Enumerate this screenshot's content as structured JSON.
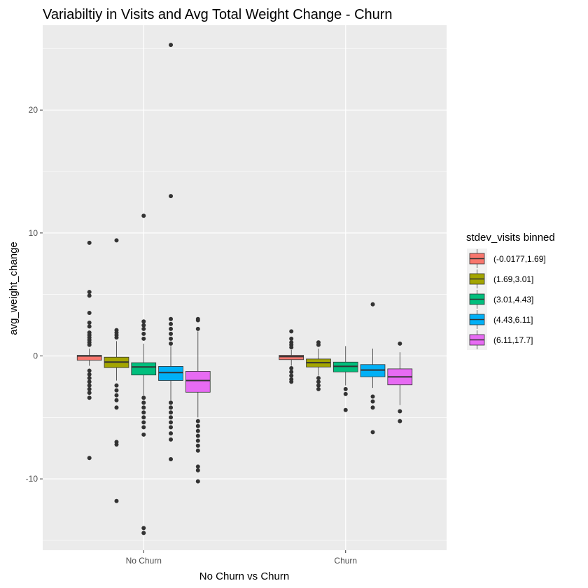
{
  "chart_data": {
    "type": "boxplot",
    "title": "Variabiltiy in Visits and Avg Total Weight Change - Churn",
    "xlabel": "No Churn vs Churn",
    "ylabel": "avg_weight_change",
    "categories": [
      "No Churn",
      "Churn"
    ],
    "ylim": [
      -15.8,
      26.9
    ],
    "yticks": [
      -10,
      0,
      10,
      20
    ],
    "ytick_labels": [
      "-10",
      "0",
      "10",
      "20"
    ],
    "grid": true,
    "legend_title": "stdev_visits binned",
    "legend_position": "right",
    "series": [
      {
        "name": "(-0.0177,1.69]",
        "color": "#F8766D",
        "boxes": [
          {
            "category": "No Churn",
            "whisker_low": -0.8,
            "q1": -0.35,
            "median": 0.0,
            "q3": 0.05,
            "whisker_high": 0.6,
            "outliers": [
              9.2,
              5.2,
              4.9,
              3.5,
              2.7,
              2.4,
              1.9,
              1.7,
              1.5,
              1.3,
              1.1,
              0.9,
              -1.2,
              -1.5,
              -1.8,
              -2.1,
              -2.4,
              -2.7,
              -3.0,
              -3.4,
              -8.3
            ]
          },
          {
            "category": "Churn",
            "whisker_low": -0.8,
            "q1": -0.3,
            "median": -0.05,
            "q3": 0.05,
            "whisker_high": 0.5,
            "outliers": [
              2.0,
              1.4,
              1.1,
              0.9,
              0.7,
              -1.0,
              -1.3,
              -1.6,
              -1.9,
              -2.1
            ]
          }
        ]
      },
      {
        "name": "(1.69,3.01]",
        "color": "#A3A500",
        "boxes": [
          {
            "category": "No Churn",
            "whisker_low": -2.0,
            "q1": -0.95,
            "median": -0.5,
            "q3": -0.1,
            "whisker_high": 1.2,
            "outliers": [
              9.4,
              2.1,
              1.9,
              1.7,
              1.5,
              -2.4,
              -2.8,
              -3.2,
              -3.6,
              -4.2,
              -7.0,
              -7.2,
              -11.8
            ]
          },
          {
            "category": "Churn",
            "whisker_low": -1.6,
            "q1": -0.9,
            "median": -0.55,
            "q3": -0.25,
            "whisker_high": 0.6,
            "outliers": [
              1.1,
              0.9,
              -1.8,
              -2.1,
              -2.4,
              -2.7
            ]
          }
        ]
      },
      {
        "name": "(3.01,4.43]",
        "color": "#00BF7D",
        "boxes": [
          {
            "category": "No Churn",
            "whisker_low": -3.2,
            "q1": -1.55,
            "median": -0.9,
            "q3": -0.55,
            "whisker_high": 1.0,
            "outliers": [
              11.4,
              2.8,
              2.5,
              2.2,
              1.8,
              1.4,
              -3.4,
              -3.8,
              -4.2,
              -4.6,
              -5.0,
              -5.4,
              -5.8,
              -6.4,
              -14.0,
              -14.4
            ]
          },
          {
            "category": "Churn",
            "whisker_low": -2.4,
            "q1": -1.3,
            "median": -0.85,
            "q3": -0.5,
            "whisker_high": 0.8,
            "outliers": [
              -2.7,
              -3.1,
              -4.4
            ]
          }
        ]
      },
      {
        "name": "(4.43,6.11]",
        "color": "#00B0F6",
        "boxes": [
          {
            "category": "No Churn",
            "whisker_low": -3.6,
            "q1": -2.0,
            "median": -1.35,
            "q3": -0.85,
            "whisker_high": 0.8,
            "outliers": [
              25.3,
              13.0,
              3.0,
              2.6,
              2.2,
              1.8,
              1.4,
              1.0,
              -3.8,
              -4.2,
              -4.6,
              -5.0,
              -5.4,
              -5.8,
              -6.3,
              -6.8,
              -8.4
            ]
          },
          {
            "category": "Churn",
            "whisker_low": -2.6,
            "q1": -1.7,
            "median": -1.15,
            "q3": -0.7,
            "whisker_high": 0.6,
            "outliers": [
              4.2,
              -3.3,
              -3.7,
              -4.2,
              -6.2
            ]
          }
        ]
      },
      {
        "name": "(6.11,17.7]",
        "color": "#E76BF3",
        "boxes": [
          {
            "category": "No Churn",
            "whisker_low": -5.0,
            "q1": -2.95,
            "median": -2.0,
            "q3": -1.25,
            "whisker_high": 2.0,
            "outliers": [
              3.0,
              2.9,
              2.2,
              -5.3,
              -5.7,
              -6.1,
              -6.5,
              -6.9,
              -7.3,
              -7.7,
              -9.0,
              -9.3,
              -10.2
            ]
          },
          {
            "category": "Churn",
            "whisker_low": -4.0,
            "q1": -2.35,
            "median": -1.7,
            "q3": -1.05,
            "whisker_high": 0.3,
            "outliers": [
              1.0,
              -4.5,
              -5.3
            ]
          }
        ]
      }
    ]
  }
}
